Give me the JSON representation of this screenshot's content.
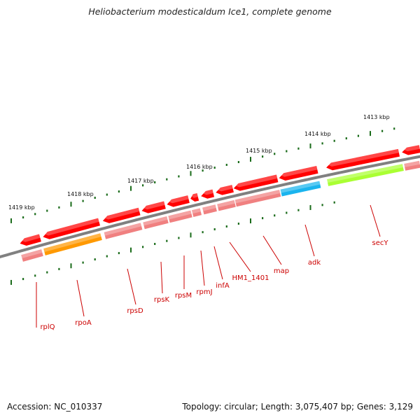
{
  "title": "Heliobacterium modesticaldum Ice1, complete genome",
  "footer": {
    "accession": "Accession: NC_010337",
    "summary": "Topology: circular; Length: 3,075,407 bp; Genes: 3,129"
  },
  "colors": {
    "backbone": "#808080",
    "cds": "#ff0000",
    "gene": "#f08080",
    "rpoA": "#ff9900",
    "adk": "#1ab4ee",
    "secY": "#aaff33",
    "tick": "#1a6b1a",
    "label": "#cc0000"
  },
  "ticks": [
    "1419 kbp",
    "1418 kbp",
    "1417 kbp",
    "1416 kbp",
    "1415 kbp",
    "1414 kbp",
    "1413 kbp"
  ],
  "genes": [
    "rplQ",
    "rpoA",
    "rpsD",
    "rpsK",
    "rpsM",
    "rpmJ",
    "infA",
    "HM1_1401",
    "map",
    "adk",
    "secY"
  ]
}
